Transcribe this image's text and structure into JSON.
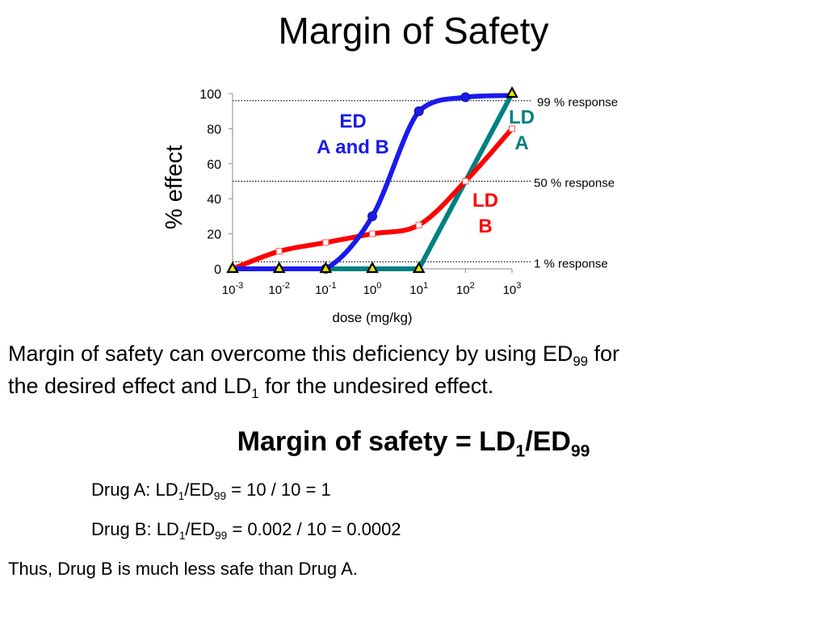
{
  "slide": {
    "title": "Margin of Safety",
    "paragraph": {
      "line1_a": "Margin of safety can overcome this deficiency by using ED",
      "line1_sub": "99",
      "line1_b": " for",
      "line2_a": "the desired effect and LD",
      "line2_sub": "1",
      "line2_b": " for the undesired effect."
    },
    "formula": {
      "a": "Margin of safety = LD",
      "sub1": "1",
      "b": "/ED",
      "sub2": "99"
    },
    "drug_a": {
      "a": "Drug A: LD",
      "sub1": "1",
      "b": "/ED",
      "sub2": "99",
      "c": " = 10 / 10 = 1"
    },
    "drug_b": {
      "a": "Drug B: LD",
      "sub1": "1",
      "b": "/ED",
      "sub2": "99",
      "c": " = 0.002 / 10 = 0.0002"
    },
    "conclusion": "Thus, Drug B is much less safe than Drug A."
  },
  "chart_data": {
    "type": "line",
    "xlabel": "dose (mg/kg)",
    "ylabel": "% effect",
    "x_scale": "log10",
    "x_exponents": [
      -3,
      -2,
      -1,
      0,
      1,
      2,
      3
    ],
    "x_tick_base": "10",
    "y_ticks": [
      0,
      20,
      40,
      60,
      80,
      100
    ],
    "ylim": [
      0,
      100
    ],
    "reference_lines": [
      {
        "y": 96,
        "label": "99 % response"
      },
      {
        "y": 50,
        "label": "50 % response"
      },
      {
        "y": 4,
        "label": "1 % response"
      }
    ],
    "series": [
      {
        "id": "ed",
        "color": "#1a1aee",
        "marker": "circle",
        "points": [
          [
            -3,
            0
          ],
          [
            -2,
            0
          ],
          [
            -1,
            0
          ],
          [
            0,
            30
          ],
          [
            1,
            90
          ],
          [
            2,
            98
          ],
          [
            3,
            99
          ]
        ],
        "marker_x": [
          -1,
          0,
          1,
          2
        ],
        "label_lines": [
          "ED",
          "A and B"
        ]
      },
      {
        "id": "ld_b",
        "color": "#ff0000",
        "marker": "square",
        "points": [
          [
            -3,
            0
          ],
          [
            -2,
            10
          ],
          [
            -1,
            15
          ],
          [
            0,
            20
          ],
          [
            1,
            25
          ],
          [
            2,
            50
          ],
          [
            3,
            80
          ]
        ],
        "marker_x": [
          -3,
          -2,
          -1,
          0,
          1,
          2,
          3
        ],
        "label_lines": [
          "LD",
          "B"
        ]
      },
      {
        "id": "ld_a",
        "color": "#008080",
        "marker": "triangle",
        "points": [
          [
            -3,
            0
          ],
          [
            -2,
            0
          ],
          [
            -1,
            0
          ],
          [
            0,
            0
          ],
          [
            1,
            0
          ],
          [
            3,
            100
          ]
        ],
        "marker_x": [
          -3,
          -2,
          -1,
          0,
          1,
          3
        ],
        "label_lines": [
          "LD",
          "A"
        ]
      }
    ]
  }
}
